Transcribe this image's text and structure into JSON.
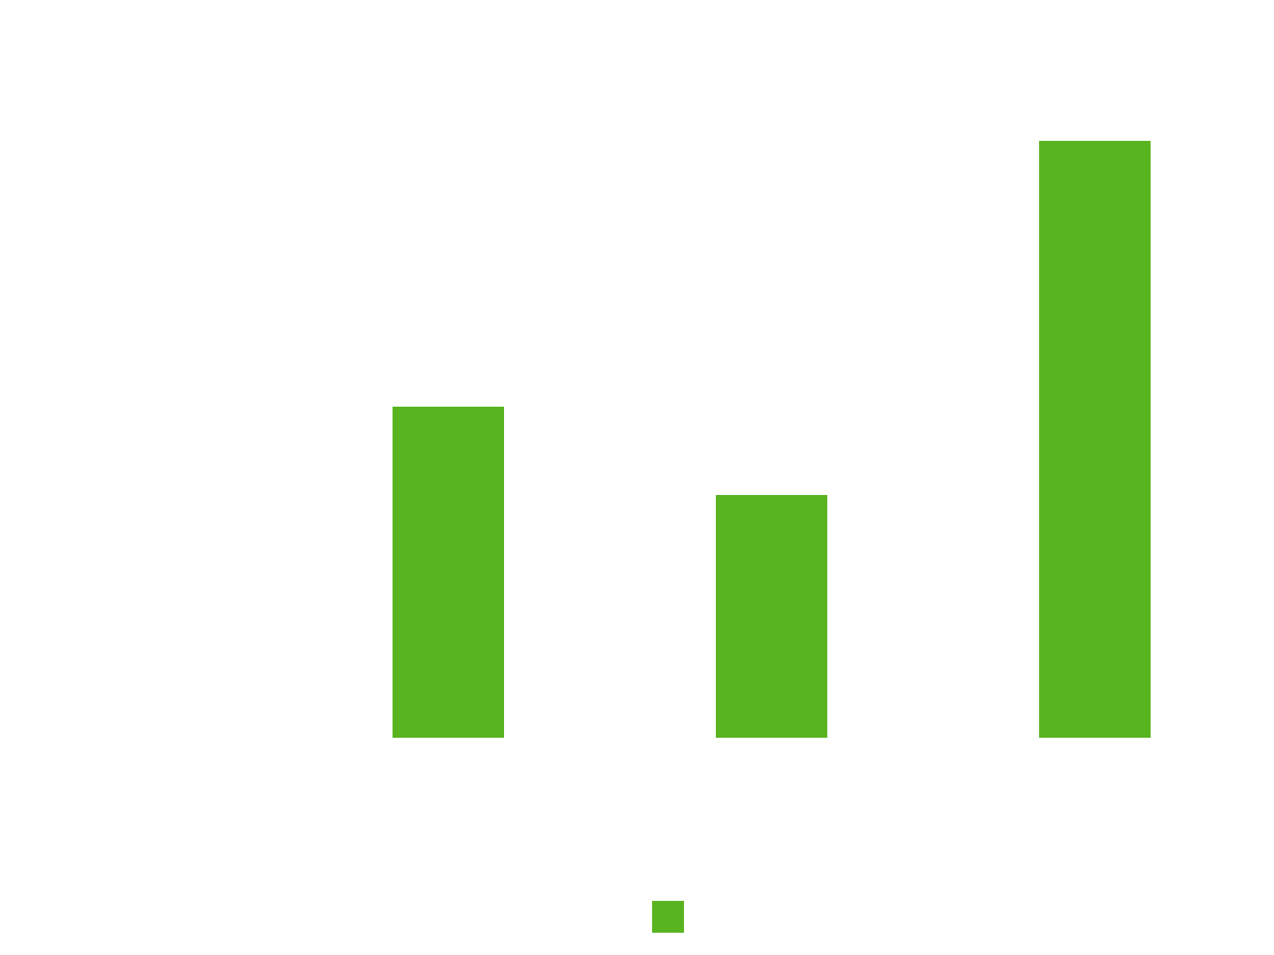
{
  "chart_data": {
    "type": "bar",
    "categories": [
      null,
      null,
      null
    ],
    "values": [
      41.6,
      30.5,
      75.0
    ],
    "color": "#58b41f",
    "ylim": [
      0,
      90
    ],
    "legend": "bottom"
  }
}
